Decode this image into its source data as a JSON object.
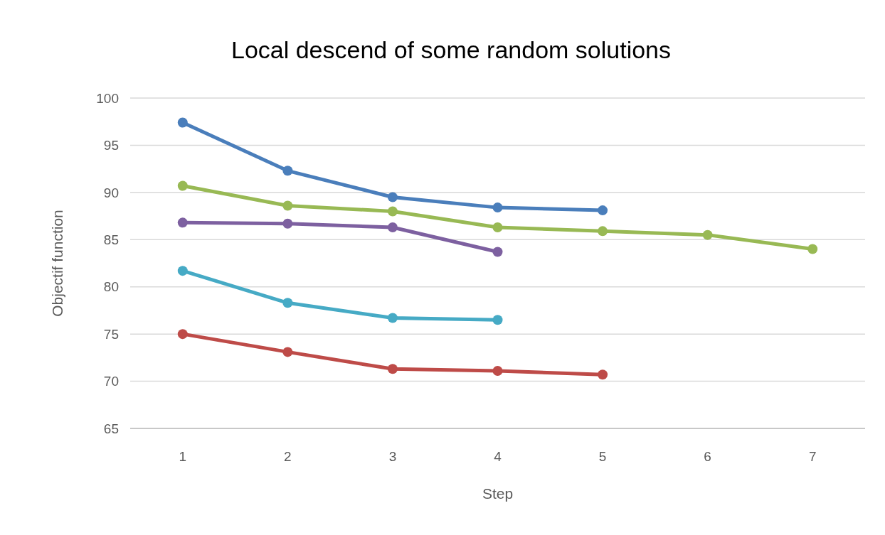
{
  "chart_data": {
    "type": "line",
    "title": "Local descend of some random solutions",
    "xlabel": "Step",
    "ylabel": "Objectif function",
    "categories": [
      "1",
      "2",
      "3",
      "4",
      "5",
      "6",
      "7"
    ],
    "series": [
      {
        "color": "#4a7ebb",
        "values": [
          97.4,
          92.3,
          89.5,
          88.4,
          88.1,
          null,
          null
        ]
      },
      {
        "color": "#98b954",
        "values": [
          90.7,
          88.6,
          88.0,
          86.3,
          85.9,
          85.5,
          84.0
        ]
      },
      {
        "color": "#7d60a0",
        "values": [
          86.8,
          86.7,
          86.3,
          83.7,
          null,
          null,
          null
        ]
      },
      {
        "color": "#46aac5",
        "values": [
          81.7,
          78.3,
          76.7,
          76.5,
          null,
          null,
          null
        ]
      },
      {
        "color": "#be4b48",
        "values": [
          75.0,
          73.1,
          71.3,
          71.1,
          70.7,
          null,
          null
        ]
      }
    ],
    "ylim": [
      65,
      100
    ],
    "yticks": [
      65,
      70,
      75,
      80,
      85,
      90,
      95,
      100
    ],
    "grid": "y",
    "marker": "circle"
  }
}
